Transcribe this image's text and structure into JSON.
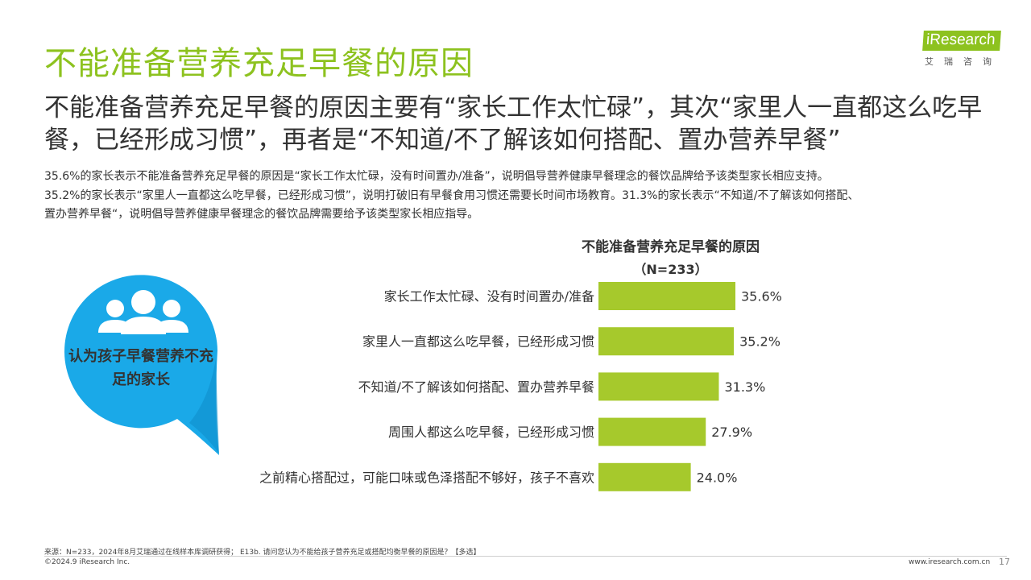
{
  "page": {
    "title": "不能准备营养充足早餐的原因",
    "headline": "不能准备营养充足早餐的原因主要有“家长工作太忙碌”，其次“家里人一直都这么吃早餐，已经形成习惯”，再者是“不知道/不了解该如何搭配、置办营养早餐”",
    "description_lines": [
      "35.6%的家长表示不能准备营养充足早餐的原因是“家长工作太忙碌，没有时间置办/准备”，说明倡导营养健康早餐理念的餐饮品牌给予该类型家长相应支持。",
      "35.2%的家长表示“家里人一直都这么吃早餐，已经形成习惯”，说明打破旧有早餐食用习惯还需要长时间市场教育。31.3%的家长表示“不知道/不了解该如何搭配、",
      "置办营养早餐“，说明倡导营养健康早餐理念的餐饮品牌需要给予该类型家长相应指导。"
    ]
  },
  "logo": {
    "name": "iResearch",
    "sub": "艾瑞咨询"
  },
  "bubble": {
    "label": "认为孩子早餐营养不充足的家长",
    "icon": "people-group-icon",
    "color": "#1aa9e8"
  },
  "chart_data": {
    "type": "bar",
    "orientation": "horizontal",
    "title": "不能准备营养充足早餐的原因",
    "subtitle": "（N=233）",
    "categories": [
      "家长工作太忙碌、没有时间置办/准备",
      "家里人一直都这么吃早餐，已经形成习惯",
      "不知道/不了解该如何搭配、置办营养早餐",
      "周围人都这么吃早餐，已经形成习惯",
      "之前精心搭配过，可能口味或色泽搭配不够好，孩子不喜欢"
    ],
    "values": [
      35.6,
      35.2,
      31.3,
      27.9,
      24.0
    ],
    "value_labels": [
      "35.6%",
      "35.2%",
      "31.3%",
      "27.9%",
      "24.0%"
    ],
    "unit": "%",
    "bar_color": "#a6c92c",
    "legend": "none",
    "grid": false
  },
  "footer": {
    "source": "来源：N=233，2024年8月艾瑞通过在线样本库调研获得； E13b. 请问您认为不能给孩子营养充足或搭配均衡早餐的原因是？【多选】",
    "copyright": "©2024.9 iResearch Inc.",
    "website": "www.iresearch.com.cn",
    "page_number": "17"
  },
  "colors": {
    "title_green": "#8dc21f",
    "text": "#333333"
  }
}
